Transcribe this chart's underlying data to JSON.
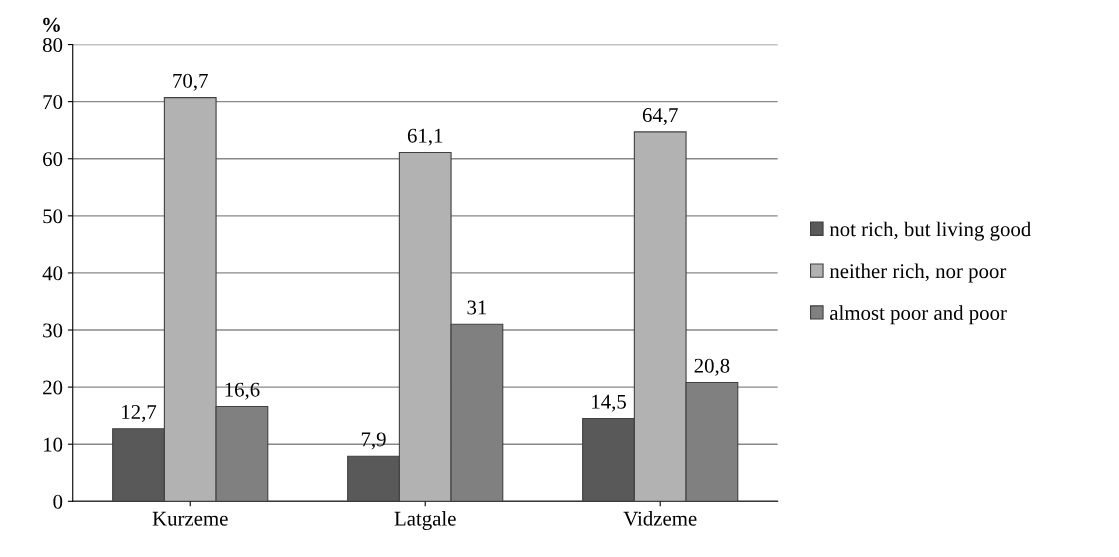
{
  "chart_data": {
    "type": "bar",
    "ylabel": "%",
    "categories": [
      "Kurzeme",
      "Latgale",
      "Vidzeme"
    ],
    "series": [
      {
        "name": "not rich, but living good",
        "color": "#595959",
        "values": [
          12.7,
          7.9,
          14.5
        ],
        "value_labels": [
          "12,7",
          "7,9",
          "14,5"
        ]
      },
      {
        "name": "neither rich, nor poor",
        "color": "#b2b2b2",
        "values": [
          70.7,
          61.1,
          64.7
        ],
        "value_labels": [
          "70,7",
          "61,1",
          "64,7"
        ]
      },
      {
        "name": "almost poor and poor",
        "color": "#808080",
        "values": [
          16.6,
          31,
          20.8
        ],
        "value_labels": [
          "16,6",
          "31",
          "20,8"
        ]
      }
    ],
    "ylim": [
      0,
      80
    ],
    "yticks": [
      0,
      10,
      20,
      30,
      40,
      50,
      60,
      70,
      80
    ],
    "grid": "y",
    "legend": "right"
  }
}
